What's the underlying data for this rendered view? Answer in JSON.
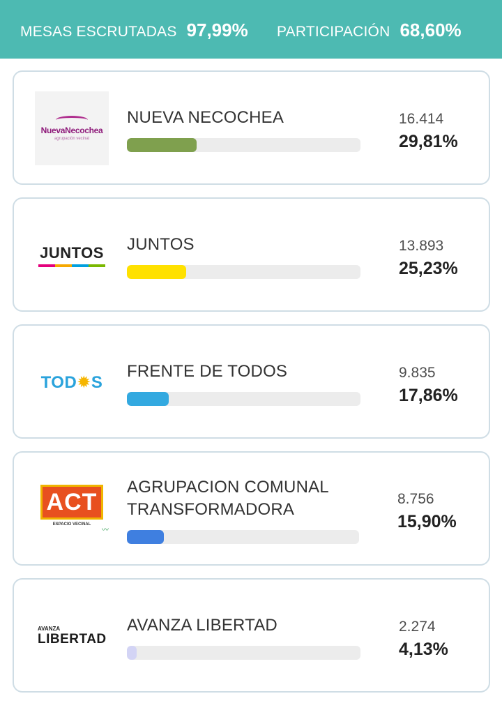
{
  "header": {
    "mesas_label": "MESAS ESCRUTADAS",
    "mesas_value": "97,99%",
    "participacion_label": "PARTICIPACIÓN",
    "participacion_value": "68,60%",
    "background_color": "#4dbab2"
  },
  "parties": [
    {
      "name": "NUEVA NECOCHEA",
      "votes": "16.414",
      "percent": "29,81%",
      "percent_value": 29.81,
      "bar_color": "#7fa04e",
      "logo": {
        "icon": "nueva-necochea-logo",
        "title": "NuevaNecochea",
        "subtitle": "agrupación vecinal"
      }
    },
    {
      "name": "JUNTOS",
      "votes": "13.893",
      "percent": "25,23%",
      "percent_value": 25.23,
      "bar_color": "#ffe100",
      "logo": {
        "icon": "juntos-logo",
        "title": "JUNTOS"
      }
    },
    {
      "name": "FRENTE DE TODOS",
      "votes": "9.835",
      "percent": "17,86%",
      "percent_value": 17.86,
      "bar_color": "#33a9e0",
      "logo": {
        "icon": "todos-logo",
        "title_a": "TOD",
        "title_b": "S"
      }
    },
    {
      "name_line1": "AGRUPACION COMUNAL",
      "name_line2": "TRANSFORMADORA",
      "votes": "8.756",
      "percent": "15,90%",
      "percent_value": 15.9,
      "bar_color": "#3f7fe0",
      "logo": {
        "icon": "act-logo",
        "title": "ACT",
        "subtitle": "ESPACIO VECINAL"
      }
    },
    {
      "name": "AVANZA LIBERTAD",
      "votes": "2.274",
      "percent": "4,13%",
      "percent_value": 4.13,
      "bar_color": "#d3d4f5",
      "logo": {
        "icon": "avanza-libertad-logo",
        "title_small": "AVANZA",
        "title": "LIBERTAD"
      }
    }
  ]
}
